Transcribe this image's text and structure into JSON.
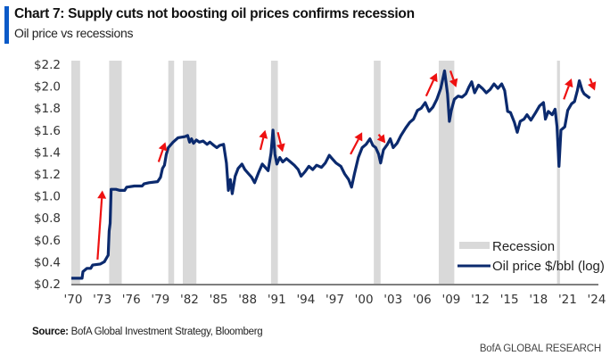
{
  "header": {
    "title": "Chart 7: Supply cuts not boosting oil prices confirms recession",
    "subtitle": "Oil price vs recessions"
  },
  "footer": {
    "source_label": "Source:",
    "source_text": "BofA Global Investment Strategy, Bloomberg",
    "brand": "BofA GLOBAL RESEARCH"
  },
  "colors": {
    "accent_bar": "#0a5ac8",
    "line": "#0b2a6e",
    "recession": "#d9d9d9",
    "arrow": "#ee1111"
  },
  "chart_data": {
    "type": "line",
    "title": "Chart 7: Supply cuts not boosting oil prices confirms recession",
    "subtitle": "Oil price vs recessions",
    "xlabel": "",
    "ylabel": "",
    "xlim": [
      1970,
      2024
    ],
    "ylim": [
      0.2,
      2.2
    ],
    "grid": false,
    "legend_position": "bottom-right",
    "x_ticks": [
      "'70",
      "'73",
      "'76",
      "'79",
      "'82",
      "'85",
      "'88",
      "'91",
      "'94",
      "'97",
      "'00",
      "'03",
      "'06",
      "'09",
      "'12",
      "'15",
      "'18",
      "'21",
      "'24"
    ],
    "x_tick_years": [
      1970,
      1973,
      1976,
      1979,
      1982,
      1985,
      1988,
      1991,
      1994,
      1997,
      2000,
      2003,
      2006,
      2009,
      2012,
      2015,
      2018,
      2021,
      2024
    ],
    "y_ticks": [
      "$0.2",
      "$0.4",
      "$0.6",
      "$0.8",
      "$1.0",
      "$1.2",
      "$1.4",
      "$1.6",
      "$1.8",
      "$2.0",
      "$2.2"
    ],
    "y_tick_values": [
      0.2,
      0.4,
      0.6,
      0.8,
      1.0,
      1.2,
      1.4,
      1.6,
      1.8,
      2.0,
      2.2
    ],
    "legend": [
      {
        "name": "Recession",
        "kind": "band"
      },
      {
        "name": "Oil price $/bbl (log)",
        "kind": "line"
      }
    ],
    "recessions": [
      [
        1970.0,
        1970.9
      ],
      [
        1973.9,
        1975.2
      ],
      [
        1980.0,
        1980.6
      ],
      [
        1981.5,
        1982.9
      ],
      [
        1990.6,
        1991.3
      ],
      [
        2001.2,
        2001.9
      ],
      [
        2007.9,
        2009.5
      ],
      [
        2020.1,
        2020.4
      ]
    ],
    "series": [
      {
        "name": "Oil price $/bbl (log)",
        "points": [
          [
            1970.0,
            0.25
          ],
          [
            1971.1,
            0.25
          ],
          [
            1971.2,
            0.31
          ],
          [
            1971.6,
            0.34
          ],
          [
            1972.0,
            0.34
          ],
          [
            1972.2,
            0.37
          ],
          [
            1973.0,
            0.38
          ],
          [
            1973.4,
            0.4
          ],
          [
            1973.8,
            0.46
          ],
          [
            1973.9,
            0.68
          ],
          [
            1974.0,
            0.75
          ],
          [
            1974.1,
            1.06
          ],
          [
            1974.6,
            1.06
          ],
          [
            1975.0,
            1.05
          ],
          [
            1975.5,
            1.05
          ],
          [
            1975.7,
            1.08
          ],
          [
            1976.5,
            1.09
          ],
          [
            1977.3,
            1.09
          ],
          [
            1977.5,
            1.11
          ],
          [
            1978.0,
            1.12
          ],
          [
            1978.9,
            1.13
          ],
          [
            1979.2,
            1.17
          ],
          [
            1979.4,
            1.25
          ],
          [
            1979.6,
            1.28
          ],
          [
            1979.8,
            1.38
          ],
          [
            1980.0,
            1.44
          ],
          [
            1980.5,
            1.49
          ],
          [
            1981.0,
            1.53
          ],
          [
            1981.7,
            1.54
          ],
          [
            1982.0,
            1.55
          ],
          [
            1982.2,
            1.49
          ],
          [
            1982.4,
            1.52
          ],
          [
            1982.6,
            1.48
          ],
          [
            1982.9,
            1.51
          ],
          [
            1983.2,
            1.49
          ],
          [
            1983.6,
            1.5
          ],
          [
            1984.0,
            1.47
          ],
          [
            1984.3,
            1.49
          ],
          [
            1984.7,
            1.46
          ],
          [
            1985.0,
            1.44
          ],
          [
            1985.3,
            1.46
          ],
          [
            1985.7,
            1.47
          ],
          [
            1986.0,
            1.3
          ],
          [
            1986.2,
            1.05
          ],
          [
            1986.4,
            1.15
          ],
          [
            1986.6,
            1.02
          ],
          [
            1986.9,
            1.18
          ],
          [
            1987.2,
            1.25
          ],
          [
            1987.6,
            1.29
          ],
          [
            1987.9,
            1.24
          ],
          [
            1988.3,
            1.2
          ],
          [
            1988.6,
            1.17
          ],
          [
            1988.9,
            1.12
          ],
          [
            1989.3,
            1.21
          ],
          [
            1989.7,
            1.29
          ],
          [
            1990.0,
            1.26
          ],
          [
            1990.3,
            1.23
          ],
          [
            1990.6,
            1.39
          ],
          [
            1990.8,
            1.6
          ],
          [
            1991.0,
            1.38
          ],
          [
            1991.2,
            1.29
          ],
          [
            1991.5,
            1.35
          ],
          [
            1991.8,
            1.31
          ],
          [
            1992.2,
            1.34
          ],
          [
            1992.6,
            1.31
          ],
          [
            1993.0,
            1.28
          ],
          [
            1993.4,
            1.24
          ],
          [
            1993.7,
            1.18
          ],
          [
            1994.1,
            1.22
          ],
          [
            1994.5,
            1.27
          ],
          [
            1994.9,
            1.24
          ],
          [
            1995.3,
            1.28
          ],
          [
            1995.8,
            1.26
          ],
          [
            1996.2,
            1.3
          ],
          [
            1996.6,
            1.37
          ],
          [
            1996.9,
            1.34
          ],
          [
            1997.3,
            1.3
          ],
          [
            1997.8,
            1.27
          ],
          [
            1998.2,
            1.2
          ],
          [
            1998.6,
            1.15
          ],
          [
            1998.9,
            1.08
          ],
          [
            1999.2,
            1.2
          ],
          [
            1999.6,
            1.35
          ],
          [
            2000.0,
            1.44
          ],
          [
            2000.4,
            1.47
          ],
          [
            2000.8,
            1.52
          ],
          [
            2001.1,
            1.46
          ],
          [
            2001.4,
            1.44
          ],
          [
            2001.7,
            1.38
          ],
          [
            2001.9,
            1.3
          ],
          [
            2002.2,
            1.42
          ],
          [
            2002.6,
            1.47
          ],
          [
            2002.9,
            1.52
          ],
          [
            2003.2,
            1.44
          ],
          [
            2003.6,
            1.48
          ],
          [
            2004.0,
            1.55
          ],
          [
            2004.5,
            1.62
          ],
          [
            2004.9,
            1.67
          ],
          [
            2005.3,
            1.7
          ],
          [
            2005.7,
            1.78
          ],
          [
            2006.1,
            1.8
          ],
          [
            2006.5,
            1.85
          ],
          [
            2006.9,
            1.77
          ],
          [
            2007.3,
            1.81
          ],
          [
            2007.7,
            1.88
          ],
          [
            2008.1,
            1.98
          ],
          [
            2008.5,
            2.14
          ],
          [
            2008.8,
            1.93
          ],
          [
            2009.0,
            1.68
          ],
          [
            2009.2,
            1.78
          ],
          [
            2009.5,
            1.88
          ],
          [
            2009.9,
            1.91
          ],
          [
            2010.3,
            1.9
          ],
          [
            2010.7,
            1.93
          ],
          [
            2011.0,
            1.99
          ],
          [
            2011.3,
            2.04
          ],
          [
            2011.6,
            1.94
          ],
          [
            2012.0,
            2.01
          ],
          [
            2012.4,
            1.98
          ],
          [
            2012.8,
            1.94
          ],
          [
            2013.2,
            1.97
          ],
          [
            2013.6,
            2.02
          ],
          [
            2014.0,
            1.98
          ],
          [
            2014.4,
            2.02
          ],
          [
            2014.7,
            1.96
          ],
          [
            2015.0,
            1.77
          ],
          [
            2015.3,
            1.76
          ],
          [
            2015.7,
            1.67
          ],
          [
            2016.0,
            1.58
          ],
          [
            2016.3,
            1.68
          ],
          [
            2016.7,
            1.7
          ],
          [
            2017.0,
            1.74
          ],
          [
            2017.4,
            1.69
          ],
          [
            2017.9,
            1.76
          ],
          [
            2018.3,
            1.82
          ],
          [
            2018.7,
            1.85
          ],
          [
            2018.9,
            1.7
          ],
          [
            2019.2,
            1.77
          ],
          [
            2019.6,
            1.74
          ],
          [
            2019.9,
            1.79
          ],
          [
            2020.1,
            1.63
          ],
          [
            2020.3,
            1.27
          ],
          [
            2020.5,
            1.6
          ],
          [
            2020.9,
            1.63
          ],
          [
            2021.2,
            1.78
          ],
          [
            2021.6,
            1.84
          ],
          [
            2021.9,
            1.86
          ],
          [
            2022.2,
            1.96
          ],
          [
            2022.4,
            2.05
          ],
          [
            2022.7,
            1.96
          ],
          [
            2022.9,
            1.93
          ],
          [
            2023.2,
            1.91
          ],
          [
            2023.5,
            1.89
          ]
        ]
      }
    ],
    "annotations": [
      {
        "type": "arrow",
        "direction": "up",
        "from": [
          1972.7,
          0.42
        ],
        "to": [
          1973.2,
          1.05
        ]
      },
      {
        "type": "arrow",
        "direction": "up",
        "from": [
          1979.0,
          1.31
        ],
        "to": [
          1979.7,
          1.49
        ]
      },
      {
        "type": "arrow",
        "direction": "up",
        "from": [
          1989.5,
          1.42
        ],
        "to": [
          1990.0,
          1.6
        ]
      },
      {
        "type": "arrow",
        "direction": "down",
        "from": [
          1991.3,
          1.58
        ],
        "to": [
          1991.8,
          1.4
        ]
      },
      {
        "type": "arrow",
        "direction": "up",
        "from": [
          1998.8,
          1.38
        ],
        "to": [
          2000.0,
          1.58
        ]
      },
      {
        "type": "arrow",
        "direction": "down",
        "from": [
          2001.7,
          1.56
        ],
        "to": [
          2002.4,
          1.48
        ]
      },
      {
        "type": "arrow",
        "direction": "up",
        "from": [
          2006.6,
          1.91
        ],
        "to": [
          2007.7,
          2.12
        ]
      },
      {
        "type": "arrow",
        "direction": "down",
        "from": [
          2009.1,
          2.14
        ],
        "to": [
          2009.7,
          1.99
        ]
      },
      {
        "type": "arrow",
        "direction": "up",
        "from": [
          2020.8,
          1.88
        ],
        "to": [
          2021.6,
          2.07
        ]
      },
      {
        "type": "arrow",
        "direction": "down",
        "from": [
          2023.5,
          2.07
        ],
        "to": [
          2024.0,
          1.96
        ]
      }
    ]
  }
}
